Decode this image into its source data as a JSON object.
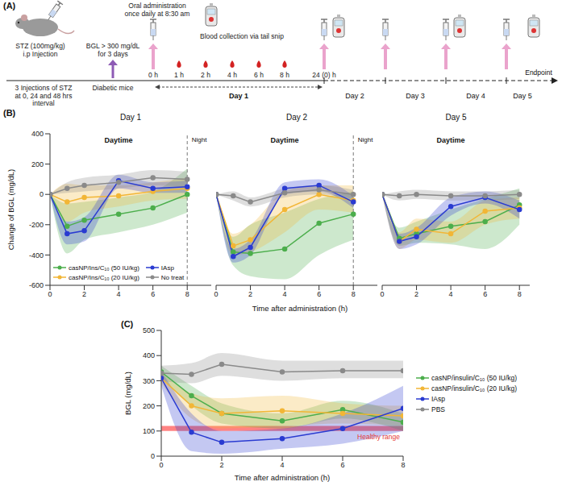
{
  "panel_a": {
    "label": "(A)",
    "injection": {
      "dose": "STZ (100mg/kg)",
      "route": "i.p Injection",
      "schedule": "3 Injections of STZ at 0, 24 and 48 hrs interval"
    },
    "criterion": "BGL > 300 mg/dL for 3 days",
    "state": "Diabetic mice",
    "dosing": "Oral administration once daily at 8:30 am",
    "sampling": "Blood collection via tail snip",
    "timepoints": [
      "0 h",
      "1 h",
      "2 h",
      "4 h",
      "6 h",
      "8 h",
      "24 (0) h"
    ],
    "days": [
      "Day 1",
      "Day 2",
      "Day 3",
      "Day 4",
      "Day 5"
    ],
    "end": "Endpoint"
  },
  "chart_data": [
    {
      "type": "line",
      "panel": "(B)",
      "xlabel": "Time after administration (h)",
      "ylabel": "Change of BGL (mg/dL)",
      "x": [
        0,
        1,
        2,
        4,
        6,
        8
      ],
      "xticks": [
        0,
        2,
        4,
        6,
        8
      ],
      "ylim": [
        -600,
        400
      ],
      "yticks": [
        -600,
        -400,
        -200,
        0,
        200,
        400
      ],
      "legend": "lower left",
      "series": [
        {
          "name": "casNP/Ins/C₁₀ (50 IU/kg)",
          "color": "#4cae4c",
          "marker": "circle"
        },
        {
          "name": "casNP/Ins/C₁₀ (20 IU/kg)",
          "color": "#f2b636",
          "marker": "circle"
        },
        {
          "name": "IAsp",
          "color": "#2a3bd1",
          "marker": "circle"
        },
        {
          "name": "No treat",
          "color": "#8a8a8a",
          "marker": "circle"
        }
      ],
      "panels": [
        {
          "title": "Day 1",
          "subtitle": "Daytime",
          "night_label": "Night",
          "night_start": 8,
          "xlim": [
            0,
            9.4
          ],
          "series": [
            {
              "values": [
                0,
                -210,
                -170,
                -130,
                -90,
                0
              ],
              "lower": [
                0,
                -390,
                -300,
                -250,
                -200,
                -120
              ],
              "upper": [
                0,
                -60,
                -50,
                -20,
                20,
                170
              ]
            },
            {
              "values": [
                0,
                -50,
                -20,
                -10,
                20,
                40
              ],
              "lower": [
                0,
                -180,
                -120,
                -80,
                -40,
                -30
              ],
              "upper": [
                0,
                70,
                60,
                60,
                80,
                110
              ]
            },
            {
              "values": [
                0,
                -260,
                -240,
                90,
                40,
                50
              ],
              "lower": [
                0,
                -330,
                -310,
                40,
                10,
                10
              ],
              "upper": [
                0,
                -180,
                -150,
                130,
                80,
                90
              ]
            },
            {
              "values": [
                0,
                40,
                60,
                80,
                110,
                100
              ],
              "lower": [
                0,
                10,
                20,
                40,
                60,
                50
              ],
              "upper": [
                0,
                80,
                110,
                130,
                160,
                150
              ]
            }
          ]
        },
        {
          "title": "Day 2",
          "subtitle": "Daytime",
          "night_label": "Night",
          "night_start": 8,
          "xlim": [
            0,
            9.4
          ],
          "series": [
            {
              "values": [
                0,
                -380,
                -390,
                -360,
                -190,
                -130
              ],
              "lower": [
                0,
                -470,
                -540,
                -560,
                -400,
                -300
              ],
              "upper": [
                0,
                -280,
                -200,
                -120,
                -30,
                20
              ]
            },
            {
              "values": [
                0,
                -340,
                -300,
                -100,
                0,
                -40
              ],
              "lower": [
                0,
                -400,
                -380,
                -250,
                -100,
                -120
              ],
              "upper": [
                0,
                -260,
                -200,
                20,
                60,
                60
              ]
            },
            {
              "values": [
                0,
                -410,
                -350,
                40,
                60,
                -50
              ],
              "lower": [
                0,
                -450,
                -400,
                0,
                20,
                -90
              ],
              "upper": [
                0,
                -360,
                -300,
                80,
                100,
                -10
              ]
            },
            {
              "values": [
                0,
                -10,
                -50,
                10,
                30,
                0
              ],
              "lower": [
                0,
                -40,
                -80,
                -20,
                0,
                -30
              ],
              "upper": [
                0,
                20,
                -20,
                40,
                60,
                30
              ]
            }
          ]
        },
        {
          "title": "Day 5",
          "subtitle": "Daytime",
          "xlim": [
            0,
            8.6
          ],
          "series": [
            {
              "values": [
                0,
                -290,
                -260,
                -210,
                -180,
                -70
              ],
              "lower": [
                0,
                -340,
                -320,
                -330,
                -360,
                -200
              ],
              "upper": [
                0,
                -220,
                -180,
                -100,
                -30,
                40
              ]
            },
            {
              "values": [
                0,
                -310,
                -230,
                -260,
                -110,
                -90
              ],
              "lower": [
                0,
                -360,
                -300,
                -320,
                -200,
                -160
              ],
              "upper": [
                0,
                -250,
                -160,
                -180,
                -40,
                -20
              ]
            },
            {
              "values": [
                0,
                -310,
                -280,
                -80,
                -20,
                -100
              ],
              "lower": [
                0,
                -360,
                -330,
                -140,
                -60,
                -160
              ],
              "upper": [
                0,
                -260,
                -220,
                -20,
                20,
                -40
              ]
            },
            {
              "values": [
                0,
                -10,
                0,
                -10,
                -10,
                0
              ],
              "lower": [
                0,
                -40,
                -30,
                -40,
                -40,
                -30
              ],
              "upper": [
                0,
                20,
                30,
                20,
                20,
                30
              ]
            }
          ]
        }
      ]
    },
    {
      "type": "line",
      "panel": "(C)",
      "xlabel": "Time after administration (h)",
      "ylabel": "BGL (mg/dL)",
      "x": [
        0,
        1,
        2,
        4,
        6,
        8
      ],
      "xlim": [
        0,
        8
      ],
      "xticks": [
        0,
        2,
        4,
        6,
        8
      ],
      "ylim": [
        0,
        500
      ],
      "yticks": [
        0,
        100,
        200,
        300,
        400,
        500
      ],
      "legend": "right",
      "series": [
        {
          "name": "casNP/insulin/C₁₀ (50 IU/kg)",
          "color": "#4cae4c",
          "marker": "circle",
          "values": [
            335,
            240,
            170,
            140,
            185,
            135
          ],
          "lower": [
            310,
            200,
            130,
            110,
            150,
            100
          ],
          "upper": [
            360,
            280,
            210,
            170,
            220,
            170
          ]
        },
        {
          "name": "casNP/insulin/C₁₀ (20 IU/kg)",
          "color": "#f2b636",
          "marker": "circle",
          "values": [
            310,
            200,
            170,
            180,
            170,
            160
          ],
          "lower": [
            290,
            150,
            110,
            120,
            130,
            120
          ],
          "upper": [
            330,
            250,
            230,
            240,
            210,
            200
          ]
        },
        {
          "name": "IAsp",
          "color": "#2a3bd1",
          "marker": "circle",
          "values": [
            310,
            95,
            55,
            70,
            110,
            190
          ],
          "lower": [
            280,
            20,
            10,
            30,
            50,
            100
          ],
          "upper": [
            340,
            170,
            100,
            110,
            170,
            280
          ]
        },
        {
          "name": "PBS",
          "color": "#8a8a8a",
          "marker": "circle",
          "values": [
            330,
            325,
            365,
            335,
            340,
            340
          ],
          "lower": [
            300,
            290,
            320,
            300,
            310,
            310
          ],
          "upper": [
            360,
            370,
            410,
            380,
            380,
            380
          ]
        }
      ],
      "healthy_range": {
        "label": "Healthy range",
        "lower": 100,
        "upper": 120,
        "color": "#ff5a5a"
      }
    }
  ]
}
